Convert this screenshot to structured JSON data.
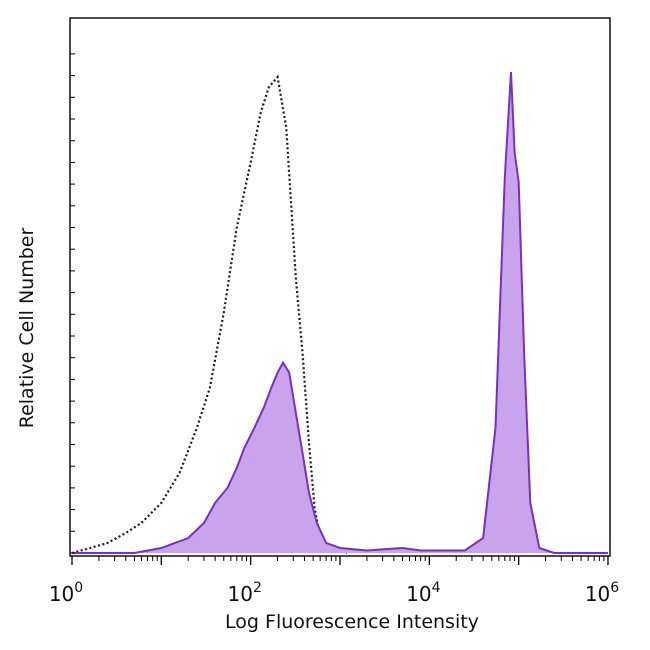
{
  "chart_data": {
    "type": "area",
    "title": "",
    "xlabel": "Log Fluorescence Intensity",
    "ylabel": "Relative Cell Number",
    "x_scale": "log",
    "xlim": [
      1,
      1000000
    ],
    "ylim": [
      0,
      100
    ],
    "x_ticks": [
      {
        "base": "10",
        "exp": "0",
        "value": 1
      },
      {
        "base": "10",
        "exp": "2",
        "value": 100
      },
      {
        "base": "10",
        "exp": "4",
        "value": 10000
      },
      {
        "base": "10",
        "exp": "6",
        "value": 1000000
      }
    ],
    "grid": false,
    "legend": "none",
    "series": [
      {
        "style": "dotted-line",
        "color": "#1a1a1a",
        "fill": "none",
        "points": [
          [
            1.0,
            0
          ],
          [
            1.6,
            1
          ],
          [
            2.5,
            2
          ],
          [
            4,
            4
          ],
          [
            6,
            6
          ],
          [
            10,
            10
          ],
          [
            16,
            16
          ],
          [
            25,
            25
          ],
          [
            35,
            33
          ],
          [
            50,
            48
          ],
          [
            70,
            65
          ],
          [
            100,
            78
          ],
          [
            130,
            88
          ],
          [
            160,
            93
          ],
          [
            200,
            95
          ],
          [
            250,
            85
          ],
          [
            320,
            55
          ],
          [
            380,
            40
          ],
          [
            450,
            22
          ],
          [
            520,
            9
          ],
          [
            600,
            3
          ],
          [
            800,
            1
          ],
          [
            1200,
            0
          ]
        ]
      },
      {
        "style": "filled",
        "color": "#7a2fc0",
        "fill": "#c9a3ec",
        "points": [
          [
            1.0,
            0
          ],
          [
            5,
            0
          ],
          [
            10,
            1
          ],
          [
            20,
            3
          ],
          [
            30,
            6
          ],
          [
            40,
            10
          ],
          [
            55,
            13
          ],
          [
            70,
            17
          ],
          [
            85,
            21
          ],
          [
            110,
            25
          ],
          [
            140,
            29
          ],
          [
            170,
            33
          ],
          [
            200,
            36
          ],
          [
            230,
            38
          ],
          [
            270,
            36
          ],
          [
            320,
            28
          ],
          [
            380,
            20
          ],
          [
            450,
            12
          ],
          [
            550,
            6
          ],
          [
            700,
            2
          ],
          [
            1000,
            1
          ],
          [
            2000,
            0.5
          ],
          [
            5000,
            1
          ],
          [
            8000,
            0.5
          ],
          [
            25000,
            0.5
          ],
          [
            40000,
            3
          ],
          [
            55000,
            25
          ],
          [
            70000,
            75
          ],
          [
            82000,
            96
          ],
          [
            90000,
            80
          ],
          [
            100000,
            74
          ],
          [
            115000,
            40
          ],
          [
            135000,
            10
          ],
          [
            170000,
            1
          ],
          [
            250000,
            0
          ],
          [
            1000000,
            0
          ]
        ]
      }
    ]
  }
}
